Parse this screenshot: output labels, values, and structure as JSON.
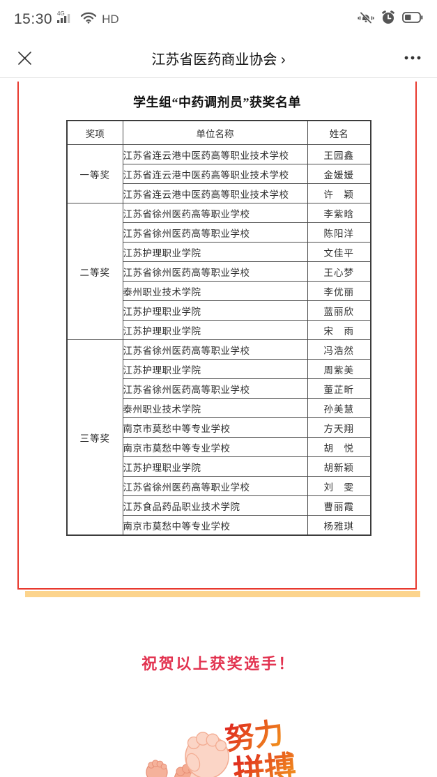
{
  "status_bar": {
    "time": "15:30",
    "network_label": "4G",
    "hd_label": "HD"
  },
  "header": {
    "title": "江苏省医药商业协会 ›"
  },
  "article": {
    "table_title": "学生组“中药调剂员”获奖名单",
    "congrats_text": "祝贺以上获奖选手！",
    "illustration_text_top": "努力",
    "illustration_text_bottom": "拼搏"
  },
  "colors": {
    "card_border": "#e8392e",
    "card_shadow": "#fcd48d",
    "congrats_red": "#e23350",
    "illustration_gradient_start": "#dd1f1f",
    "illustration_gradient_end": "#f08a1d"
  },
  "award_table": {
    "headers": [
      "奖项",
      "单位名称",
      "姓名"
    ],
    "groups": [
      {
        "award": "一等奖",
        "rows": [
          {
            "unit": "江苏省连云港中医药高等职业技术学校",
            "name": "王园鑫"
          },
          {
            "unit": "江苏省连云港中医药高等职业技术学校",
            "name": "金媛媛"
          },
          {
            "unit": "江苏省连云港中医药高等职业技术学校",
            "name": "许　颖"
          }
        ]
      },
      {
        "award": "二等奖",
        "rows": [
          {
            "unit": "江苏省徐州医药高等职业学校",
            "name": "李紫晗"
          },
          {
            "unit": "江苏省徐州医药高等职业学校",
            "name": "陈阳洋"
          },
          {
            "unit": "江苏护理职业学院",
            "name": "文佳平"
          },
          {
            "unit": "江苏省徐州医药高等职业学校",
            "name": "王心梦"
          },
          {
            "unit": "泰州职业技术学院",
            "name": "李优丽"
          },
          {
            "unit": "江苏护理职业学院",
            "name": "蓝丽欣"
          },
          {
            "unit": "江苏护理职业学院",
            "name": "宋　雨"
          }
        ]
      },
      {
        "award": "三等奖",
        "rows": [
          {
            "unit": "江苏省徐州医药高等职业学校",
            "name": "冯浩然"
          },
          {
            "unit": "江苏护理职业学院",
            "name": "周紫美"
          },
          {
            "unit": "江苏省徐州医药高等职业学校",
            "name": "董芷昕"
          },
          {
            "unit": "泰州职业技术学院",
            "name": "孙美慧"
          },
          {
            "unit": "南京市莫愁中等专业学校",
            "name": "方天翔"
          },
          {
            "unit": "南京市莫愁中等专业学校",
            "name": "胡　悦"
          },
          {
            "unit": "江苏护理职业学院",
            "name": "胡新颖"
          },
          {
            "unit": "江苏省徐州医药高等职业学校",
            "name": "刘　雯"
          },
          {
            "unit": "江苏食品药品职业技术学院",
            "name": "曹丽霞"
          },
          {
            "unit": "南京市莫愁中等专业学校",
            "name": "杨雅琪"
          }
        ]
      }
    ]
  }
}
